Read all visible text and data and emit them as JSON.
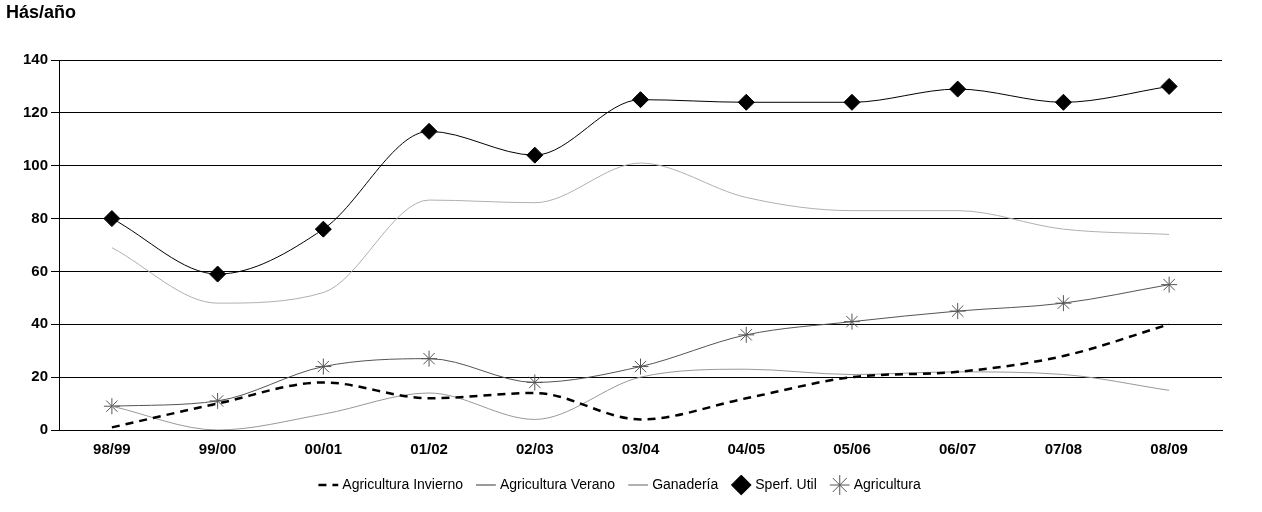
{
  "chart_data": {
    "type": "line",
    "ylabel": "Hás/año",
    "categories": [
      "98/99",
      "99/00",
      "00/01",
      "01/02",
      "02/03",
      "03/04",
      "04/05",
      "05/06",
      "06/07",
      "07/08",
      "08/09"
    ],
    "series": [
      {
        "name": "Agricultura Invierno",
        "color": "#000000",
        "line_style": "dashed",
        "marker": "none",
        "values": [
          1,
          10,
          18,
          12,
          14,
          4,
          12,
          20,
          22,
          28,
          40
        ]
      },
      {
        "name": "Agricultura Verano",
        "color": "#999999",
        "line_style": "solid",
        "marker": "none",
        "values": [
          9,
          0,
          6,
          14,
          4,
          20,
          23,
          21,
          22,
          21,
          15
        ]
      },
      {
        "name": "Ganadería",
        "color": "#b0b0b0",
        "line_style": "solid",
        "marker": "none",
        "values": [
          69,
          48,
          52,
          87,
          86,
          101,
          88,
          83,
          83,
          76,
          74
        ]
      },
      {
        "name": "Sperf. Util",
        "color": "#000000",
        "line_style": "solid",
        "marker": "diamond",
        "values": [
          80,
          59,
          76,
          113,
          104,
          125,
          124,
          124,
          129,
          124,
          130
        ]
      },
      {
        "name": "Agricultura",
        "color": "#555555",
        "line_style": "solid",
        "marker": "cross",
        "values": [
          9,
          11,
          24,
          27,
          18,
          24,
          36,
          41,
          45,
          48,
          55
        ]
      }
    ],
    "ylim": [
      0,
      140
    ],
    "yticks": [
      0,
      20,
      40,
      60,
      80,
      100,
      120,
      140
    ],
    "grid": "y",
    "legend": "bottom"
  }
}
